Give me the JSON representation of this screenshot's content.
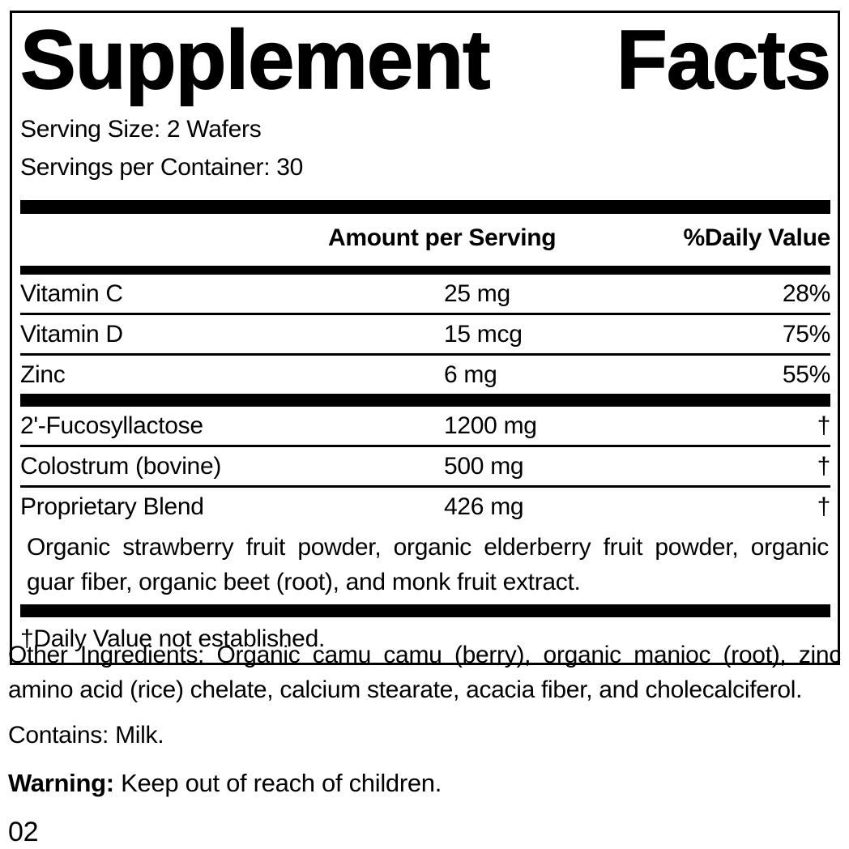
{
  "panel": {
    "title": {
      "word1": "Supplement",
      "word2": "Facts"
    },
    "serving_size": "Serving Size: 2 Wafers",
    "servings_per_container": "Servings per Container: 30",
    "columns": {
      "amount_header": "Amount per Serving",
      "daily_value_header": "%Daily Value"
    },
    "nutrients": [
      {
        "name": "Vitamin C",
        "amount": "25 mg",
        "dv": "28%"
      },
      {
        "name": "Vitamin D",
        "amount": "15 mcg",
        "dv": "75%"
      },
      {
        "name": "Zinc",
        "amount": "6 mg",
        "dv": "55%"
      }
    ],
    "other_rows": [
      {
        "name": "2'-Fucosyllactose",
        "amount": "1200 mg",
        "dv": "†"
      },
      {
        "name": "Colostrum (bovine)",
        "amount": "500 mg",
        "dv": "†"
      },
      {
        "name": "Proprietary Blend",
        "amount": "426 mg",
        "dv": "†"
      }
    ],
    "blend_description": "Organic strawberry fruit powder, organic elderberry fruit powder, organic guar fiber, organic beet (root), and monk fruit extract.",
    "footnote": "†Daily Value not established."
  },
  "below_panel": {
    "other_ingredients": "Other Ingredients: Organic camu camu (berry), organic manioc (root), zinc amino acid (rice) chelate, calcium stearate, acacia fiber, and cholecalciferol.",
    "contains": "Contains: Milk.",
    "warning_label": "Warning:",
    "warning_text": " Keep out of reach of children.",
    "code": "02"
  },
  "colors": {
    "text": "#000000",
    "background": "#ffffff",
    "border": "#000000"
  }
}
